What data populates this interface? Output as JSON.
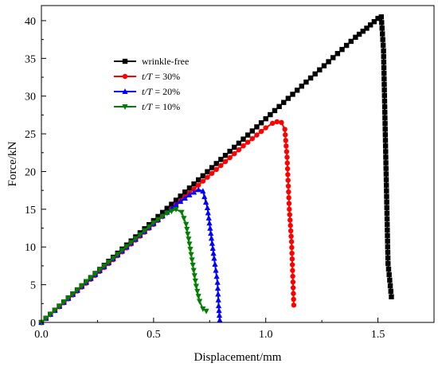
{
  "chart_data": {
    "type": "line",
    "xlabel": "Displacement/mm",
    "ylabel": "Force/kN",
    "xlim": [
      0,
      1.75
    ],
    "ylim": [
      0,
      42
    ],
    "x_ticks": [
      "0.0",
      "0.5",
      "1.0",
      "1.5"
    ],
    "x_tick_values": [
      0,
      0.5,
      1.0,
      1.5
    ],
    "y_ticks": [
      "0",
      "5",
      "10",
      "15",
      "20",
      "25",
      "30",
      "35",
      "40"
    ],
    "y_tick_values": [
      0,
      5,
      10,
      15,
      20,
      25,
      30,
      35,
      40
    ],
    "grid": false,
    "legend_position": "top-left",
    "series": [
      {
        "name": "wrinkle-free",
        "label_parts": [
          "wrinkle-free",
          "",
          ""
        ],
        "color": "#000000",
        "marker": "square",
        "points": [
          [
            0,
            0
          ],
          [
            0.1,
            2.7
          ],
          [
            0.2,
            5.4
          ],
          [
            0.3,
            8.1
          ],
          [
            0.4,
            10.8
          ],
          [
            0.5,
            13.5
          ],
          [
            0.6,
            16.2
          ],
          [
            0.7,
            18.9
          ],
          [
            0.8,
            21.6
          ],
          [
            0.9,
            24.3
          ],
          [
            1.0,
            27.0
          ],
          [
            1.1,
            29.7
          ],
          [
            1.2,
            32.4
          ],
          [
            1.3,
            35.1
          ],
          [
            1.4,
            37.8
          ],
          [
            1.45,
            39.0
          ],
          [
            1.5,
            40.3
          ],
          [
            1.515,
            40.5
          ],
          [
            1.525,
            36.0
          ],
          [
            1.545,
            7.8
          ],
          [
            1.56,
            3.4
          ]
        ]
      },
      {
        "name": "t/T = 30%",
        "label_parts": [
          "t",
          "/T",
          " = 30%"
        ],
        "color": "#ff0000",
        "marker": "circle",
        "points": [
          [
            0,
            0
          ],
          [
            0.1,
            2.6
          ],
          [
            0.2,
            5.2
          ],
          [
            0.3,
            7.8
          ],
          [
            0.4,
            10.4
          ],
          [
            0.5,
            13.0
          ],
          [
            0.6,
            15.6
          ],
          [
            0.7,
            18.2
          ],
          [
            0.8,
            20.8
          ],
          [
            0.9,
            23.4
          ],
          [
            1.0,
            25.8
          ],
          [
            1.03,
            26.4
          ],
          [
            1.05,
            26.6
          ],
          [
            1.07,
            26.5
          ],
          [
            1.085,
            25.6
          ],
          [
            1.095,
            21.9
          ],
          [
            1.105,
            15.0
          ],
          [
            1.115,
            10.7
          ],
          [
            1.125,
            2.3
          ]
        ]
      },
      {
        "name": "t/T = 20%",
        "label_parts": [
          "t",
          "/T",
          " = 20%"
        ],
        "color": "#0000ff",
        "marker": "triangle-up",
        "points": [
          [
            0,
            0
          ],
          [
            0.1,
            2.65
          ],
          [
            0.2,
            5.3
          ],
          [
            0.3,
            7.9
          ],
          [
            0.4,
            10.5
          ],
          [
            0.5,
            13.1
          ],
          [
            0.6,
            15.6
          ],
          [
            0.66,
            16.9
          ],
          [
            0.7,
            17.6
          ],
          [
            0.72,
            17.4
          ],
          [
            0.74,
            15.2
          ],
          [
            0.755,
            11.8
          ],
          [
            0.77,
            8.5
          ],
          [
            0.785,
            5.3
          ],
          [
            0.79,
            2.2
          ],
          [
            0.795,
            0.3
          ]
        ]
      },
      {
        "name": "t/T = 10%",
        "label_parts": [
          "t",
          "/T",
          " = 10%"
        ],
        "color": "#008000",
        "marker": "triangle-down",
        "points": [
          [
            0,
            0
          ],
          [
            0.1,
            2.7
          ],
          [
            0.2,
            5.4
          ],
          [
            0.3,
            8.0
          ],
          [
            0.4,
            10.6
          ],
          [
            0.5,
            13.2
          ],
          [
            0.56,
            14.5
          ],
          [
            0.6,
            15.0
          ],
          [
            0.625,
            14.6
          ],
          [
            0.645,
            13.0
          ],
          [
            0.66,
            10.4
          ],
          [
            0.675,
            7.6
          ],
          [
            0.69,
            4.8
          ],
          [
            0.705,
            2.8
          ],
          [
            0.72,
            1.8
          ],
          [
            0.735,
            1.5
          ]
        ]
      }
    ]
  }
}
